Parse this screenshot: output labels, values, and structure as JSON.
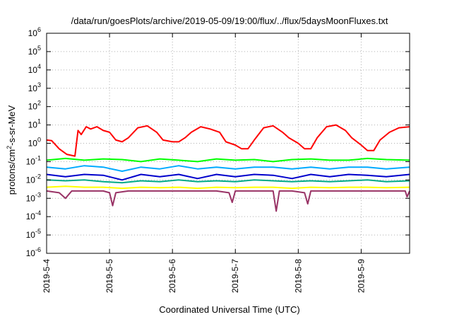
{
  "chart_data": {
    "type": "line",
    "title": "/data/run/goesPlots/archive/2019-05-09/19:00/flux/../flux/5daysMoonFluxes.txt",
    "xlabel": "Coordinated Universal Time (UTC)",
    "ylabel_parts": [
      "protons/cm",
      "2",
      "-s-sr-MeV"
    ],
    "yscale": "log",
    "ylim": [
      1e-06,
      1000000.0
    ],
    "xlim": [
      0,
      5.77
    ],
    "x_unit": "days since 2019-5-4 00:00",
    "y_ticks": [
      {
        "value": 1e-06,
        "base": "10",
        "exp": "-6"
      },
      {
        "value": 1e-05,
        "base": "10",
        "exp": "-5"
      },
      {
        "value": 0.0001,
        "base": "10",
        "exp": "-4"
      },
      {
        "value": 0.001,
        "base": "10",
        "exp": "-3"
      },
      {
        "value": 0.01,
        "base": "10",
        "exp": "-2"
      },
      {
        "value": 0.1,
        "base": "10",
        "exp": "-1"
      },
      {
        "value": 1,
        "base": "10",
        "exp": "0"
      },
      {
        "value": 10,
        "base": "10",
        "exp": "1"
      },
      {
        "value": 100,
        "base": "10",
        "exp": "2"
      },
      {
        "value": 1000,
        "base": "10",
        "exp": "3"
      },
      {
        "value": 10000,
        "base": "10",
        "exp": "4"
      },
      {
        "value": 100000,
        "base": "10",
        "exp": "5"
      },
      {
        "value": 1000000,
        "base": "10",
        "exp": "6"
      }
    ],
    "x_ticks": [
      {
        "value": 0,
        "label": "2019-5-4"
      },
      {
        "value": 1,
        "label": "2019-5-5"
      },
      {
        "value": 2,
        "label": "2019-5-6"
      },
      {
        "value": 3,
        "label": "2019-5-7"
      },
      {
        "value": 4,
        "label": "2019-5-8"
      },
      {
        "value": 5,
        "label": "2019-5-9"
      }
    ],
    "grid": true,
    "series": [
      {
        "color": "#ff0000",
        "x": [
          0,
          0.08,
          0.2,
          0.32,
          0.45,
          0.5,
          0.55,
          0.63,
          0.7,
          0.8,
          0.9,
          1.0,
          1.1,
          1.2,
          1.3,
          1.45,
          1.6,
          1.75,
          1.85,
          2.0,
          2.1,
          2.2,
          2.3,
          2.45,
          2.6,
          2.75,
          2.85,
          3.0,
          3.1,
          3.2,
          3.3,
          3.45,
          3.6,
          3.75,
          3.85,
          4.0,
          4.1,
          4.2,
          4.3,
          4.45,
          4.6,
          4.75,
          4.85,
          5.0,
          5.1,
          5.2,
          5.3,
          5.45,
          5.6,
          5.77
        ],
        "y": [
          1.5,
          1.4,
          0.5,
          0.25,
          0.2,
          5,
          3,
          8,
          6,
          8,
          5,
          4,
          1.5,
          1.2,
          2,
          7,
          9,
          4,
          1.5,
          1.2,
          1.2,
          2,
          4,
          8,
          6,
          4,
          1.2,
          0.8,
          0.5,
          0.5,
          1.5,
          7,
          9,
          4,
          2,
          1.0,
          0.5,
          0.5,
          2,
          8,
          10,
          5,
          2,
          0.8,
          0.4,
          0.4,
          1.5,
          4,
          7,
          8
        ]
      },
      {
        "color": "#00ff00",
        "x": [
          0,
          0.3,
          0.6,
          0.9,
          1.2,
          1.5,
          1.8,
          2.1,
          2.4,
          2.7,
          3.0,
          3.3,
          3.6,
          3.9,
          4.2,
          4.5,
          4.8,
          5.1,
          5.4,
          5.77
        ],
        "y": [
          0.12,
          0.15,
          0.12,
          0.14,
          0.13,
          0.1,
          0.14,
          0.12,
          0.1,
          0.14,
          0.12,
          0.13,
          0.1,
          0.13,
          0.14,
          0.12,
          0.12,
          0.15,
          0.13,
          0.12
        ]
      },
      {
        "color": "#00aaff",
        "x": [
          0,
          0.3,
          0.6,
          0.9,
          1.2,
          1.5,
          1.8,
          2.1,
          2.4,
          2.7,
          3.0,
          3.3,
          3.6,
          3.9,
          4.2,
          4.5,
          4.8,
          5.1,
          5.4,
          5.77
        ],
        "y": [
          0.05,
          0.04,
          0.06,
          0.05,
          0.03,
          0.05,
          0.04,
          0.06,
          0.04,
          0.05,
          0.04,
          0.05,
          0.05,
          0.04,
          0.05,
          0.04,
          0.05,
          0.05,
          0.04,
          0.05
        ]
      },
      {
        "color": "#0000cc",
        "x": [
          0,
          0.3,
          0.6,
          0.9,
          1.2,
          1.5,
          1.8,
          2.1,
          2.4,
          2.7,
          3.0,
          3.3,
          3.6,
          3.9,
          4.2,
          4.5,
          4.8,
          5.1,
          5.4,
          5.77
        ],
        "y": [
          0.02,
          0.015,
          0.02,
          0.018,
          0.01,
          0.02,
          0.015,
          0.02,
          0.012,
          0.02,
          0.015,
          0.02,
          0.018,
          0.012,
          0.02,
          0.015,
          0.02,
          0.018,
          0.015,
          0.02
        ]
      },
      {
        "color": "#00aa88",
        "x": [
          0,
          0.3,
          0.6,
          0.9,
          1.2,
          1.5,
          1.8,
          2.1,
          2.4,
          2.7,
          3.0,
          3.3,
          3.6,
          3.9,
          4.2,
          4.5,
          4.8,
          5.1,
          5.4,
          5.77
        ],
        "y": [
          0.01,
          0.009,
          0.01,
          0.008,
          0.007,
          0.009,
          0.008,
          0.01,
          0.008,
          0.009,
          0.008,
          0.01,
          0.009,
          0.008,
          0.009,
          0.008,
          0.009,
          0.01,
          0.008,
          0.009
        ]
      },
      {
        "color": "#ffff00",
        "x": [
          0,
          0.3,
          0.6,
          0.9,
          1.2,
          1.5,
          1.8,
          2.1,
          2.4,
          2.7,
          3.0,
          3.3,
          3.6,
          3.9,
          4.2,
          4.5,
          4.8,
          5.1,
          5.4,
          5.77
        ],
        "y": [
          0.004,
          0.0045,
          0.004,
          0.004,
          0.0035,
          0.004,
          0.0038,
          0.004,
          0.0035,
          0.004,
          0.0038,
          0.004,
          0.004,
          0.0035,
          0.004,
          0.0038,
          0.004,
          0.004,
          0.0038,
          0.004
        ]
      },
      {
        "color": "#993366",
        "x": [
          0,
          0.2,
          0.3,
          0.4,
          0.6,
          0.9,
          1.0,
          1.05,
          1.1,
          1.3,
          1.6,
          1.9,
          2.1,
          2.4,
          2.7,
          2.9,
          2.95,
          3.0,
          3.3,
          3.6,
          3.65,
          3.7,
          3.9,
          4.1,
          4.15,
          4.2,
          4.5,
          4.8,
          5.1,
          5.4,
          5.7,
          5.73,
          5.77
        ],
        "y": [
          0.0025,
          0.002,
          0.001,
          0.0025,
          0.0025,
          0.0025,
          0.002,
          0.0004,
          0.002,
          0.0025,
          0.0025,
          0.0025,
          0.0025,
          0.0025,
          0.0025,
          0.002,
          0.0006,
          0.0025,
          0.0025,
          0.0025,
          0.0002,
          0.0025,
          0.0025,
          0.002,
          0.0005,
          0.0025,
          0.0025,
          0.0025,
          0.0025,
          0.0025,
          0.0025,
          0.0012,
          0.0025
        ]
      }
    ]
  }
}
